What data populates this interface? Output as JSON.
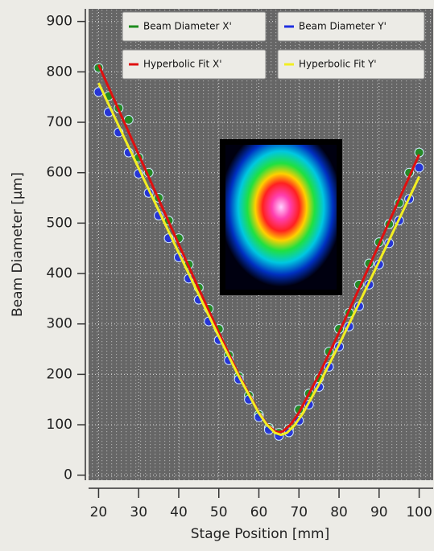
{
  "chart_data": {
    "type": "scatter",
    "x_label": "Stage Position [mm]",
    "y_label": "Beam Diameter [µm]",
    "xlim": [
      17.5,
      103.5
    ],
    "ylim": [
      -10,
      925
    ],
    "xticks": [
      20,
      30,
      40,
      50,
      60,
      70,
      80,
      90,
      100
    ],
    "yticks": [
      0,
      100,
      200,
      300,
      400,
      500,
      600,
      700,
      800,
      900
    ],
    "grid": true,
    "legend": "top",
    "x": [
      20,
      22.5,
      25,
      27.5,
      30,
      32.5,
      35,
      37.5,
      40,
      42.5,
      45,
      47.5,
      50,
      52.5,
      55,
      57.5,
      60,
      62.5,
      65,
      67.5,
      70,
      72.5,
      75,
      77.5,
      80,
      82.5,
      85,
      87.5,
      90,
      92.5,
      95,
      97.5,
      100
    ],
    "series": [
      {
        "name": "Beam Diameter X'",
        "type": "scatter",
        "color": "#1e8c1e",
        "values": [
          808,
          752,
          728,
          705,
          630,
          600,
          550,
          505,
          470,
          418,
          372,
          330,
          290,
          238,
          196,
          158,
          120,
          94,
          84,
          92,
          130,
          162,
          192,
          245,
          290,
          322,
          378,
          420,
          462,
          498,
          540,
          600,
          640
        ]
      },
      {
        "name": "Beam Diameter Y'",
        "type": "scatter",
        "color": "#1f2fe0",
        "values": [
          760,
          720,
          680,
          640,
          598,
          560,
          515,
          470,
          432,
          390,
          348,
          305,
          268,
          228,
          190,
          150,
          115,
          90,
          78,
          85,
          108,
          140,
          175,
          215,
          255,
          295,
          335,
          378,
          418,
          460,
          505,
          548,
          610
        ]
      },
      {
        "name": "Hyperbolic Fit X'",
        "type": "line",
        "color": "#e01010",
        "x": [
          20,
          25,
          30,
          35,
          40,
          45,
          50,
          55,
          60,
          62,
          64,
          65,
          66,
          68,
          70,
          75,
          80,
          85,
          90,
          95,
          100
        ],
        "values": [
          814,
          725,
          636,
          547,
          458,
          370,
          283,
          199,
          124,
          101,
          87,
          85,
          87,
          101,
          124,
          199,
          283,
          370,
          458,
          547,
          636
        ]
      },
      {
        "name": "Hyperbolic Fit Y'",
        "type": "line",
        "color": "#f2ee22",
        "x": [
          20,
          25,
          30,
          35,
          40,
          45,
          50,
          55,
          60,
          62,
          64,
          65.5,
          67,
          69,
          71,
          75,
          80,
          85,
          90,
          95,
          100
        ],
        "values": [
          778,
          693,
          609,
          525,
          441,
          358,
          275,
          196,
          123,
          100,
          84,
          80,
          84,
          100,
          123,
          180,
          259,
          341,
          424,
          508,
          592
        ]
      }
    ]
  }
}
